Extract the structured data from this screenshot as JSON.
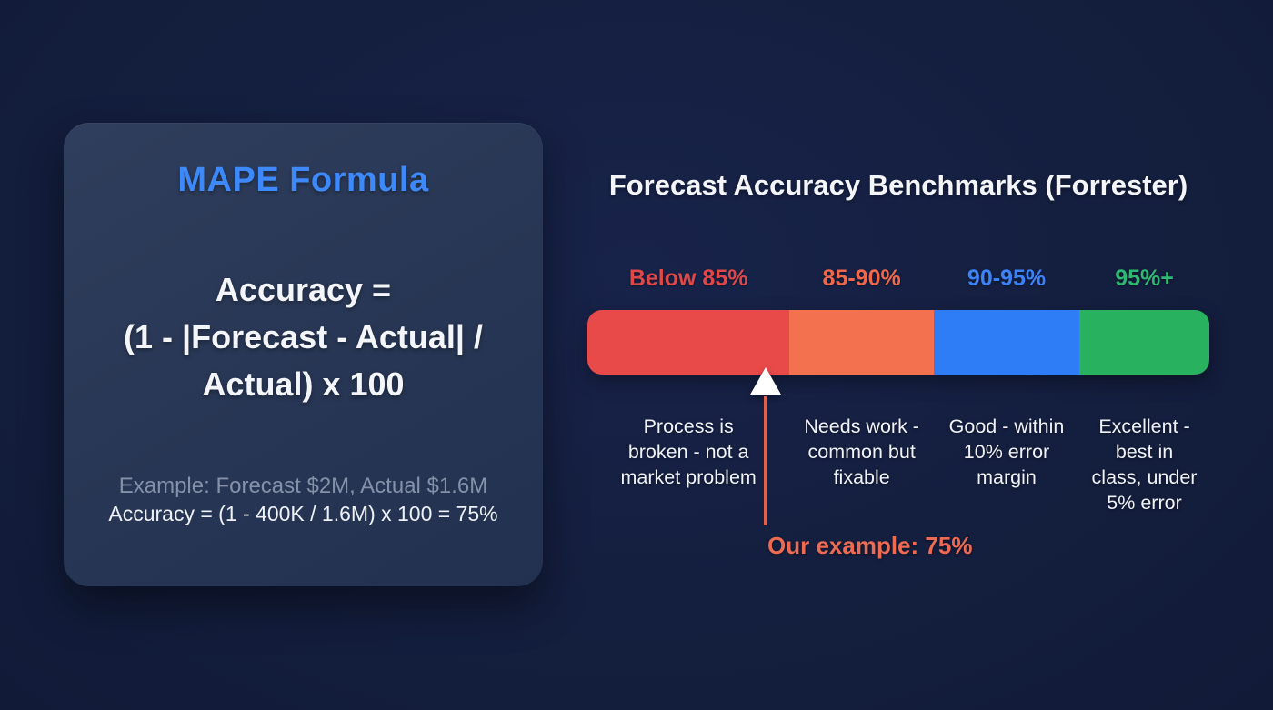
{
  "canvas": {
    "background": "#141e3c"
  },
  "formula_card": {
    "title": "MAPE Formula",
    "title_color": "#3e89fa",
    "formula_lines": {
      "line1": "Accuracy =",
      "line2": "(1 - |Forecast - Actual| /",
      "line3": "Actual) x 100"
    },
    "example_line1": "Example: Forecast $2M, Actual $1.6M",
    "example_line2": "Accuracy = (1 - 400K / 1.6M) x 100 = 75%"
  },
  "benchmark_chart": {
    "title": "Forecast Accuracy Benchmarks (Forrester)",
    "segments": [
      {
        "range_label": "Below 85%",
        "label_color": "#de4848",
        "bar_color": "#e84a4a",
        "width": "32.5%",
        "description": "Process is broken - not a market problem"
      },
      {
        "range_label": "85-90%",
        "label_color": "#ed684c",
        "bar_color": "#f3714f",
        "width": "23.2%",
        "description": "Needs work - common but fixable"
      },
      {
        "range_label": "90-95%",
        "label_color": "#3c83f7",
        "bar_color": "#2e7cf6",
        "width": "23.4%",
        "description": "Good - within 10% error margin"
      },
      {
        "range_label": "95%+",
        "label_color": "#2eb873",
        "bar_color": "#28b25f",
        "width": "20.9%",
        "description": "Excellent - best in class, under 5% error"
      }
    ],
    "marker": {
      "label": "Our example: 75%",
      "text_color": "#ec6b52",
      "line_color": "#e0604a",
      "triangle_color": "#ffffff",
      "value_pct": 75
    }
  },
  "chart_data": {
    "type": "bar",
    "title": "Forecast Accuracy Benchmarks (Forrester)",
    "categories": [
      "Below 85%",
      "85-90%",
      "90-95%",
      "95%+"
    ],
    "category_descriptions": [
      "Process is broken - not a market problem",
      "Needs work - common but fixable",
      "Good - within 10% error margin",
      "Excellent - best in class, under 5% error"
    ],
    "segment_colors": [
      "#e84a4a",
      "#f3714f",
      "#2e7cf6",
      "#28b25f"
    ],
    "annotation": {
      "label": "Our example: 75%",
      "value": 75
    },
    "legend_position": "above-bar",
    "grid": false
  }
}
